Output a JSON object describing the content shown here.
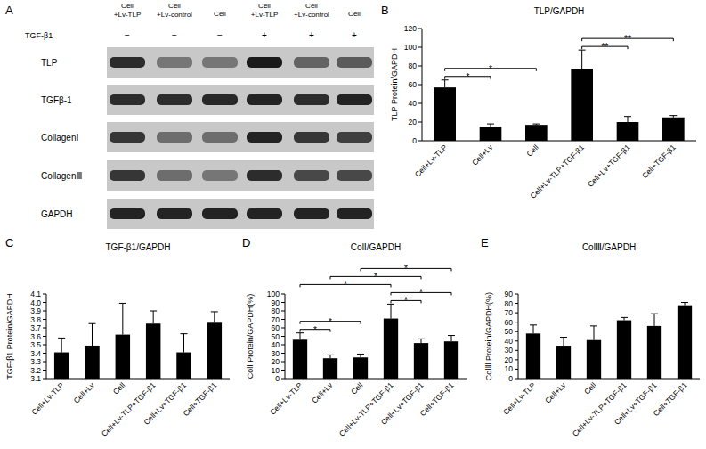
{
  "blot": {
    "panel": "A",
    "lanes": [
      [
        "Cell",
        "+Lv-TLP"
      ],
      [
        "Cell",
        "+Lv-control"
      ],
      [
        "Cell"
      ],
      [
        "Cell",
        "+Lv-TLP"
      ],
      [
        "Cell",
        "+Lv-control"
      ],
      [
        "Cell"
      ]
    ],
    "treatment": {
      "label": "TGF-β1",
      "values": [
        "−",
        "−",
        "−",
        "+",
        "+",
        "+"
      ]
    },
    "rows": [
      {
        "label": "TLP",
        "bands": [
          0.85,
          0.45,
          0.45,
          0.95,
          0.55,
          0.6
        ]
      },
      {
        "label": "TGFβ-1",
        "bands": [
          0.85,
          0.85,
          0.88,
          0.9,
          0.85,
          0.9
        ]
      },
      {
        "label": "CollagenⅠ",
        "bands": [
          0.8,
          0.5,
          0.5,
          0.9,
          0.8,
          0.75
        ]
      },
      {
        "label": "CollagenⅢ",
        "bands": [
          0.8,
          0.5,
          0.45,
          0.85,
          0.7,
          0.7
        ]
      },
      {
        "label": "GAPDH",
        "bands": [
          0.9,
          0.9,
          0.9,
          0.9,
          0.9,
          0.9
        ]
      }
    ]
  },
  "chart_data": [
    {
      "type": "bar",
      "title": "TLP/GAPDH",
      "annotations": [
        "B"
      ],
      "y_label": "TLP Protein/GAPDH",
      "categories": [
        "Cell+Lv-TLP",
        "Cell+Lv",
        "Cell",
        "Cell+Lv-TLP+TGF-β1",
        "Cell+Lv+TGF-β1",
        "Cell+TGF-β1"
      ],
      "values": [
        57,
        15,
        17,
        77,
        20,
        25
      ],
      "errors": [
        8,
        3,
        1,
        20,
        6,
        2
      ],
      "color": "#000000",
      "ylim": [
        0,
        120
      ],
      "yticks": [
        0,
        20,
        40,
        60,
        80,
        100,
        120
      ],
      "grid": false,
      "significance": [
        {
          "from": 0,
          "to": 1,
          "label": "*"
        },
        {
          "from": 0,
          "to": 2,
          "label": "*"
        },
        {
          "from": 3,
          "to": 4,
          "label": "**"
        },
        {
          "from": 3,
          "to": 5,
          "label": "**"
        }
      ]
    },
    {
      "type": "bar",
      "title": "TGF-β1/GAPDH",
      "annotations": [
        "C"
      ],
      "y_label": "TGF-β1 Protein/GAPDH",
      "categories": [
        "Cell+Lv-TLP",
        "Cell+Lv",
        "Cell",
        "Cell+Lv-TLP+TGF-β1",
        "Cell+Lv+TGF-β1",
        "Cell+TGF-β1"
      ],
      "values": [
        3.41,
        3.49,
        3.62,
        3.75,
        3.41,
        3.76
      ],
      "errors": [
        0.17,
        0.26,
        0.37,
        0.15,
        0.22,
        0.13
      ],
      "color": "#000000",
      "ylim": [
        3.1,
        4.1
      ],
      "yticks": [
        3.1,
        3.2,
        3.3,
        3.4,
        3.5,
        3.6,
        3.7,
        3.8,
        3.9,
        {
          "value": 4,
          "label": "4.0"
        },
        4.1
      ],
      "grid": false
    },
    {
      "type": "bar",
      "title": "ColⅠ/GAPDH",
      "annotations": [
        "D"
      ],
      "y_label": "ColⅠ Protein/GAPDH(%)",
      "categories": [
        "Cell+Lv-TLP",
        "Cell+Lv",
        "Cell",
        "Cell+Lv-TLP+TGF-β1",
        "Cell+Lv+TGF-β1",
        "Cell+TGF-β1"
      ],
      "values": [
        46,
        24,
        25,
        71,
        42,
        44
      ],
      "errors": [
        8,
        4,
        4,
        17,
        5,
        7
      ],
      "color": "#000000",
      "ylim": [
        0,
        100
      ],
      "yticks": [
        0,
        10,
        20,
        30,
        40,
        50,
        60,
        70,
        80,
        90,
        100
      ],
      "grid": false,
      "significance": [
        {
          "from": 0,
          "to": 1,
          "label": "*"
        },
        {
          "from": 0,
          "to": 2,
          "label": "*"
        },
        {
          "from": 3,
          "to": 4,
          "label": "*"
        },
        {
          "from": 3,
          "to": 5,
          "label": "*"
        },
        {
          "from": 0,
          "to": 3,
          "label": "*"
        },
        {
          "from": 1,
          "to": 4,
          "label": "*"
        },
        {
          "from": 2,
          "to": 5,
          "label": "*"
        }
      ]
    },
    {
      "type": "bar",
      "title": "ColⅢ/GAPDH",
      "annotations": [
        "E"
      ],
      "y_label": "ColⅢ Protein/GAPDH(%)",
      "categories": [
        "Cell+Lv-TLP",
        "Cell+Lv",
        "Cell",
        "Cell+Lv-TLP+TGF-β1",
        "Cell+Lv+TGF-β1",
        "Cell+TGF-β1"
      ],
      "values": [
        48,
        35,
        41,
        62,
        56,
        78
      ],
      "errors": [
        9,
        9,
        15,
        3,
        13,
        3
      ],
      "color": "#000000",
      "ylim": [
        0,
        90
      ],
      "yticks": [
        0,
        10,
        20,
        30,
        40,
        50,
        60,
        70,
        80,
        90
      ],
      "grid": false
    }
  ]
}
